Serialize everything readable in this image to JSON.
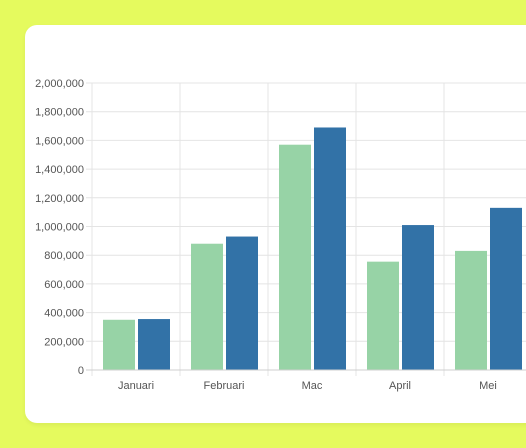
{
  "colors": {
    "background": "#e5fa5e",
    "card": "#ffffff",
    "series_light": "#97d3a6",
    "series_dark": "#3272a7",
    "grid": "#e4e4e4",
    "axis_text": "#555555"
  },
  "chart_data": {
    "type": "bar",
    "categories": [
      "Januari",
      "Februari",
      "Mac",
      "April",
      "Mei"
    ],
    "series": [
      {
        "color": "#97d3a6",
        "values": [
          350000,
          880000,
          1570000,
          755000,
          830000
        ]
      },
      {
        "color": "#3272a7",
        "values": [
          355000,
          930000,
          1690000,
          1010000,
          1130000
        ]
      }
    ],
    "ylim": [
      0,
      2000000
    ],
    "y_ticks": [
      0,
      200000,
      400000,
      600000,
      800000,
      1000000,
      1200000,
      1400000,
      1600000,
      1800000,
      2000000
    ],
    "y_tick_labels": [
      "0",
      "200,000",
      "400,000",
      "600,000",
      "800,000",
      "1,000,000",
      "1,200,000",
      "1,400,000",
      "1,600,000",
      "1,800,000",
      "2,000,000"
    ],
    "title": "",
    "xlabel": "",
    "ylabel": "",
    "grid": true,
    "legend": false
  }
}
